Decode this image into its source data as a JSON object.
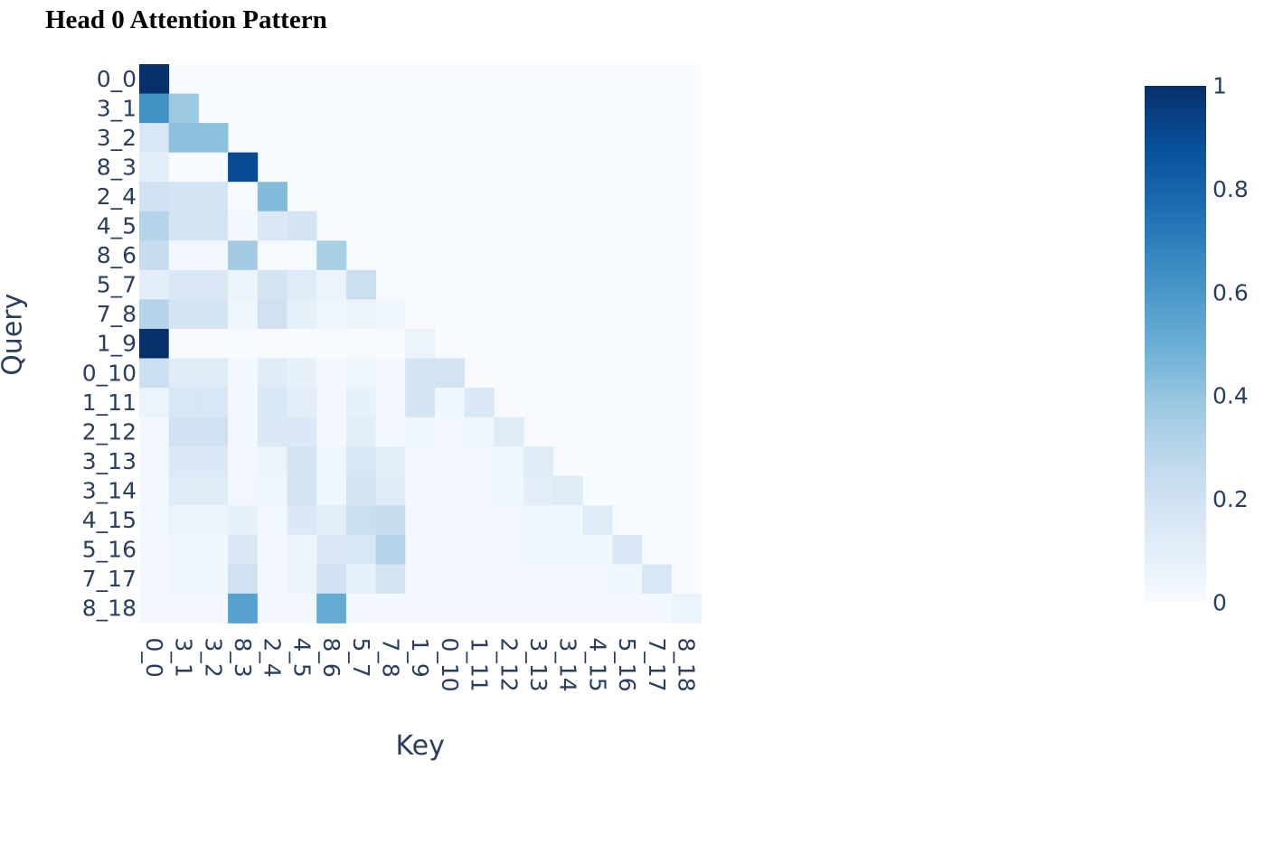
{
  "title": "Head 0 Attention Pattern",
  "chart_data": {
    "type": "heatmap",
    "title": "Head 0 Attention Pattern",
    "xlabel": "Key",
    "ylabel": "Query",
    "x": [
      "0_0",
      "3_1",
      "3_2",
      "8_3",
      "2_4",
      "4_5",
      "8_6",
      "5_7",
      "7_8",
      "1_9",
      "0_10",
      "1_11",
      "2_12",
      "3_13",
      "3_14",
      "4_15",
      "5_16",
      "7_17",
      "8_18"
    ],
    "y": [
      "0_0",
      "3_1",
      "3_2",
      "8_3",
      "2_4",
      "4_5",
      "8_6",
      "5_7",
      "7_8",
      "1_9",
      "0_10",
      "1_11",
      "2_12",
      "3_13",
      "3_14",
      "4_15",
      "5_16",
      "7_17",
      "8_18"
    ],
    "z": [
      [
        1.0
      ],
      [
        0.62,
        0.38
      ],
      [
        0.16,
        0.42,
        0.42
      ],
      [
        0.1,
        0.0,
        0.0,
        0.9
      ],
      [
        0.2,
        0.18,
        0.18,
        0.0,
        0.44
      ],
      [
        0.3,
        0.18,
        0.18,
        0.02,
        0.14,
        0.18
      ],
      [
        0.24,
        0.02,
        0.02,
        0.36,
        0.01,
        0.01,
        0.34
      ],
      [
        0.1,
        0.14,
        0.14,
        0.06,
        0.18,
        0.12,
        0.06,
        0.22
      ],
      [
        0.3,
        0.18,
        0.18,
        0.04,
        0.2,
        0.08,
        0.04,
        0.06,
        0.04
      ],
      [
        1.0,
        0.0,
        0.0,
        0.0,
        0.0,
        0.0,
        0.0,
        0.0,
        0.0,
        0.06
      ],
      [
        0.22,
        0.12,
        0.12,
        0.02,
        0.12,
        0.08,
        0.02,
        0.04,
        0.02,
        0.18,
        0.18
      ],
      [
        0.06,
        0.16,
        0.16,
        0.02,
        0.16,
        0.1,
        0.02,
        0.08,
        0.02,
        0.18,
        0.04,
        0.14
      ],
      [
        0.02,
        0.2,
        0.2,
        0.02,
        0.14,
        0.14,
        0.02,
        0.1,
        0.02,
        0.04,
        0.02,
        0.04,
        0.12
      ],
      [
        0.02,
        0.14,
        0.14,
        0.03,
        0.06,
        0.18,
        0.04,
        0.16,
        0.1,
        0.02,
        0.02,
        0.02,
        0.04,
        0.12
      ],
      [
        0.02,
        0.12,
        0.12,
        0.03,
        0.04,
        0.18,
        0.04,
        0.18,
        0.12,
        0.02,
        0.02,
        0.02,
        0.04,
        0.1,
        0.12
      ],
      [
        0.02,
        0.06,
        0.06,
        0.08,
        0.02,
        0.14,
        0.1,
        0.22,
        0.24,
        0.02,
        0.02,
        0.02,
        0.03,
        0.04,
        0.04,
        0.12
      ],
      [
        0.02,
        0.04,
        0.04,
        0.14,
        0.02,
        0.06,
        0.14,
        0.16,
        0.3,
        0.02,
        0.02,
        0.02,
        0.03,
        0.04,
        0.04,
        0.04,
        0.14
      ],
      [
        0.02,
        0.04,
        0.04,
        0.2,
        0.02,
        0.06,
        0.2,
        0.08,
        0.18,
        0.02,
        0.02,
        0.02,
        0.03,
        0.03,
        0.03,
        0.03,
        0.04,
        0.16
      ],
      [
        0.02,
        0.02,
        0.02,
        0.56,
        0.02,
        0.02,
        0.52,
        0.02,
        0.02,
        0.02,
        0.02,
        0.02,
        0.02,
        0.02,
        0.02,
        0.02,
        0.02,
        0.02,
        0.06
      ]
    ],
    "zmin": 0,
    "zmax": 1,
    "colorscale": "Blues",
    "colorscale_stops": [
      "#f7fbff",
      "#deebf7",
      "#c6dbef",
      "#9ecae1",
      "#6baed6",
      "#4292c6",
      "#2171b5",
      "#08519c",
      "#08306b"
    ],
    "colorbar_ticks": [
      "0",
      "0.2",
      "0.4",
      "0.6",
      "0.8",
      "1"
    ],
    "tick_color": "#2a3f5f"
  }
}
